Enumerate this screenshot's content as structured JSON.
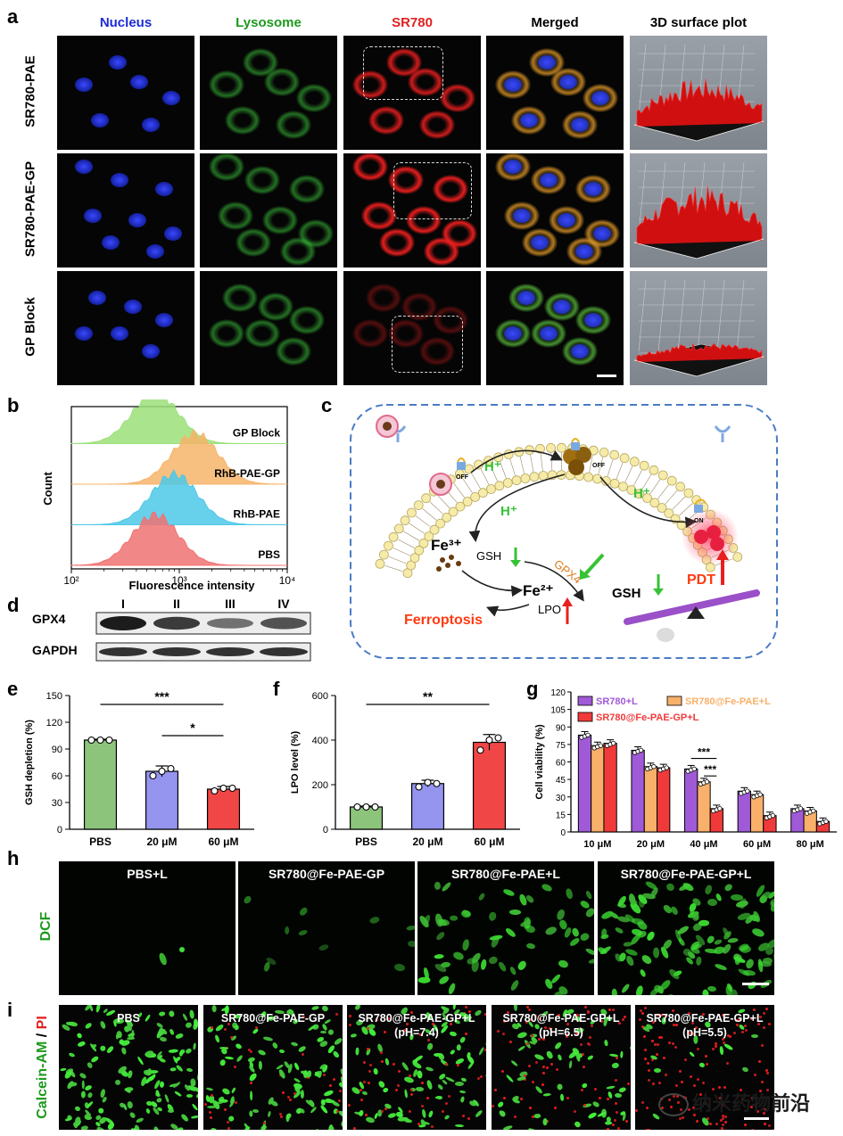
{
  "panel_a": {
    "label": "a",
    "columns": [
      "Nucleus",
      "Lysosome",
      "SR780",
      "Merged",
      "3D surface plot"
    ],
    "column_colors": [
      "#1c2bd6",
      "#1d9a1d",
      "#e02020",
      "#000000",
      "#000000"
    ],
    "rows": [
      "SR780-PAE",
      "SR780-PAE-GP",
      "GP Block"
    ]
  },
  "panel_b": {
    "label": "b",
    "chart_data": {
      "type": "area",
      "xlabel": "Fluorescence intensity",
      "ylabel": "Count",
      "xscale": "log",
      "xlim": [
        100,
        10000
      ],
      "xticks": [
        "10²",
        "10³",
        "10⁴"
      ],
      "series": [
        {
          "name": "GP Block",
          "color": "#9be07a",
          "peak": 600
        },
        {
          "name": "RhB-PAE-GP",
          "color": "#f6b46a",
          "peak": 1400
        },
        {
          "name": "RhB-PAE",
          "color": "#4cc8e8",
          "peak": 900
        },
        {
          "name": "PBS",
          "color": "#f07272",
          "peak": 600
        }
      ]
    }
  },
  "panel_c": {
    "label": "c",
    "texts": {
      "h1": "H⁺",
      "h2": "H⁺",
      "h3": "H⁺",
      "off1": "OFF",
      "off2": "OFF",
      "on": "ON",
      "fe3": "Fe³⁺",
      "gsh1": "GSH",
      "gpx4": "GPX4",
      "fe2": "Fe²⁺",
      "gsh2": "GSH",
      "lpo": "LPO",
      "ferroptosis": "Ferroptosis",
      "pdt": "PDT"
    }
  },
  "panel_d": {
    "label": "d",
    "lanes": [
      "I",
      "II",
      "III",
      "IV"
    ],
    "bands": [
      "GPX4",
      "GAPDH"
    ],
    "gpx4_intensity": [
      1.0,
      0.8,
      0.45,
      0.65
    ]
  },
  "panel_e": {
    "label": "e",
    "chart_data": {
      "type": "bar",
      "categories": [
        "PBS",
        "20 μM",
        "60 μM"
      ],
      "values": [
        100,
        65,
        45
      ],
      "errors": [
        1,
        6,
        3
      ],
      "points": [
        [
          100,
          100,
          100
        ],
        [
          60,
          65,
          68
        ],
        [
          43,
          46,
          46
        ]
      ],
      "colors": [
        "#8cc47c",
        "#9595f0",
        "#f04646"
      ],
      "ylabel": "GSH depletion (%)",
      "ylim": [
        0,
        150
      ],
      "yticks": [
        0,
        30,
        60,
        90,
        120,
        150
      ],
      "sig": [
        {
          "from": 0,
          "to": 2,
          "label": "***"
        },
        {
          "from": 1,
          "to": 2,
          "label": "*"
        }
      ]
    }
  },
  "panel_f": {
    "label": "f",
    "chart_data": {
      "type": "bar",
      "categories": [
        "PBS",
        "20 μM",
        "60 μM"
      ],
      "values": [
        100,
        205,
        390
      ],
      "errors": [
        4,
        15,
        35
      ],
      "points": [
        [
          100,
          100,
          100
        ],
        [
          190,
          210,
          205
        ],
        [
          355,
          400,
          410
        ]
      ],
      "colors": [
        "#8cc47c",
        "#9595f0",
        "#f04646"
      ],
      "ylabel": "LPO level (%)",
      "ylim": [
        0,
        600
      ],
      "yticks": [
        0,
        200,
        400,
        600
      ],
      "sig": [
        {
          "from": 0,
          "to": 2,
          "label": "**"
        }
      ]
    }
  },
  "panel_g": {
    "label": "g",
    "chart_data": {
      "type": "bar",
      "categories": [
        "10 μM",
        "20 μM",
        "40 μM",
        "60 μM",
        "80 μM"
      ],
      "series": [
        {
          "name": "SR780+L",
          "color": "#a05ad8",
          "values": [
            83,
            70,
            54,
            35,
            20
          ]
        },
        {
          "name": "SR780@Fe-PAE+L",
          "color": "#f8b06a",
          "values": [
            74,
            56,
            43,
            32,
            18
          ]
        },
        {
          "name": "SR780@Fe-PAE-GP+L",
          "color": "#f03a3a",
          "values": [
            76,
            55,
            20,
            14,
            9
          ]
        }
      ],
      "ylabel": "Cell viability (%)",
      "ylim": [
        0,
        120
      ],
      "yticks": [
        0,
        15,
        30,
        45,
        60,
        75,
        90,
        105,
        120
      ],
      "sig": [
        {
          "label": "***"
        },
        {
          "label": "***"
        }
      ]
    }
  },
  "panel_h": {
    "label": "h",
    "side_label": "DCF",
    "images": [
      "PBS+L",
      "SR780@Fe-PAE-GP",
      "SR780@Fe-PAE+L",
      "SR780@Fe-PAE-GP+L"
    ],
    "green_density": [
      0.005,
      0.08,
      0.45,
      0.85
    ]
  },
  "panel_i": {
    "label": "i",
    "side_label_green": "Calcein-AM",
    "side_label_sep": " / ",
    "side_label_red": "PI",
    "images": [
      {
        "line1": "PBS",
        "line2": ""
      },
      {
        "line1": "SR780@Fe-PAE-GP",
        "line2": ""
      },
      {
        "line1": "SR780@Fe-PAE-GP+L",
        "line2": "(pH=7.4)"
      },
      {
        "line1": "SR780@Fe-PAE-GP+L",
        "line2": "(pH=6.5)"
      },
      {
        "line1": "SR780@Fe-PAE-GP+L",
        "line2": "(pH=5.5)"
      }
    ],
    "green_fraction": [
      1.0,
      0.75,
      0.55,
      0.35,
      0.15
    ]
  },
  "watermark": "纳米药物前沿"
}
